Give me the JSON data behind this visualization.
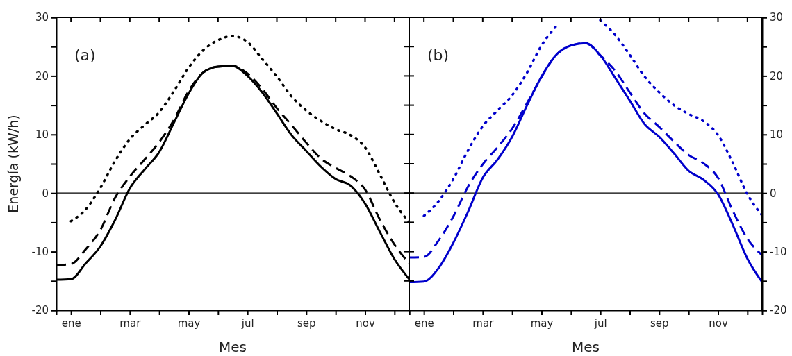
{
  "chart_data": [
    {
      "type": "line",
      "xlabel": "Mes",
      "ylabel": "Energía (kW/h)",
      "annotations": [
        "(a)"
      ],
      "ylim": [
        -20,
        30
      ],
      "categories": [
        null,
        "ene",
        null,
        null,
        null,
        "mar",
        null,
        null,
        null,
        "may",
        null,
        null,
        null,
        "jul",
        null,
        null,
        null,
        "sep",
        null,
        null,
        null,
        "nov",
        null,
        null,
        null
      ],
      "yticks": [
        -20,
        {
          "value": -15,
          "label": null
        },
        -10,
        {
          "value": -5,
          "label": null
        },
        0,
        {
          "value": 5,
          "label": null
        },
        10,
        {
          "value": 15,
          "label": null
        },
        20,
        {
          "value": 25,
          "label": null
        },
        30
      ],
      "ref_lines": [
        {
          "axis": "y",
          "value": 0,
          "color": "#000000"
        }
      ],
      "marker": "none",
      "series": [
        {
          "color": "#000000",
          "line_style": "solid",
          "values": [
            -14.8,
            -14.7,
            -12.0,
            -9.1,
            -4.6,
            0.8,
            4.0,
            7.0,
            12.0,
            17.0,
            20.6,
            21.6,
            21.7,
            20.0,
            17.2,
            13.6,
            9.9,
            7.2,
            4.5,
            2.4,
            1.3,
            -1.8,
            -6.6,
            -11.3,
            -14.7
          ]
        },
        {
          "color": "#000000",
          "line_style": "dashed",
          "values": [
            -12.3,
            -12.1,
            -9.6,
            -6.3,
            -0.8,
            2.8,
            5.7,
            8.7,
            12.5,
            17.4,
            20.6,
            21.6,
            21.7,
            20.4,
            17.8,
            14.5,
            11.6,
            8.6,
            5.9,
            4.3,
            2.9,
            0.6,
            -4.5,
            -8.8,
            -12.0
          ]
        },
        {
          "color": "#000000",
          "line_style": "dotted",
          "values": [
            null,
            -4.8,
            -2.8,
            0.9,
            5.5,
            9.2,
            11.6,
            13.8,
            17.4,
            21.4,
            24.4,
            26.1,
            26.8,
            25.8,
            22.9,
            19.9,
            16.5,
            14.1,
            12.3,
            10.9,
            9.9,
            7.8,
            3.2,
            -1.6,
            -5.0
          ]
        }
      ]
    },
    {
      "type": "line",
      "xlabel": "Mes",
      "annotations": [
        "(b)"
      ],
      "ylim": [
        -20,
        30
      ],
      "categories": [
        null,
        "ene",
        null,
        null,
        null,
        "mar",
        null,
        null,
        null,
        "may",
        null,
        null,
        null,
        "jul",
        null,
        null,
        null,
        "sep",
        null,
        null,
        null,
        "nov",
        null,
        null,
        null
      ],
      "yticks": [
        -20,
        {
          "value": -15,
          "label": null
        },
        -10,
        {
          "value": -5,
          "label": null
        },
        0,
        {
          "value": 5,
          "label": null
        },
        10,
        {
          "value": 15,
          "label": null
        },
        20,
        {
          "value": 25,
          "label": null
        },
        30
      ],
      "ref_lines": [
        {
          "axis": "y",
          "value": 0,
          "color": "#000000"
        }
      ],
      "marker": "none",
      "series": [
        {
          "color": "#0000cc",
          "line_style": "solid",
          "values": [
            -15.2,
            -15.1,
            -12.8,
            -8.5,
            -3.2,
            2.6,
            5.7,
            9.6,
            14.9,
            19.9,
            23.6,
            25.2,
            25.6,
            23.5,
            19.7,
            15.8,
            11.8,
            9.6,
            6.8,
            3.8,
            2.3,
            -0.2,
            -5.4,
            -11.2,
            -15.2
          ]
        },
        {
          "color": "#0000cc",
          "line_style": "dashed",
          "values": [
            -11.0,
            -10.9,
            -8.1,
            -4.0,
            1.1,
            4.9,
            7.8,
            11.0,
            15.3,
            19.8,
            23.6,
            25.2,
            25.6,
            23.5,
            20.9,
            17.2,
            13.6,
            11.3,
            8.8,
            6.5,
            5.1,
            2.6,
            -3.0,
            -7.8,
            -10.6
          ]
        },
        {
          "color": "#0000cc",
          "line_style": "dotted",
          "values": [
            null,
            -3.9,
            -1.4,
            2.4,
            7.3,
            11.4,
            14.1,
            16.7,
            20.5,
            25.2,
            28.5,
            null,
            null,
            29.5,
            27.0,
            23.6,
            19.9,
            17.2,
            15.0,
            13.5,
            12.3,
            9.9,
            5.2,
            -0.2,
            -3.8
          ]
        }
      ]
    }
  ]
}
